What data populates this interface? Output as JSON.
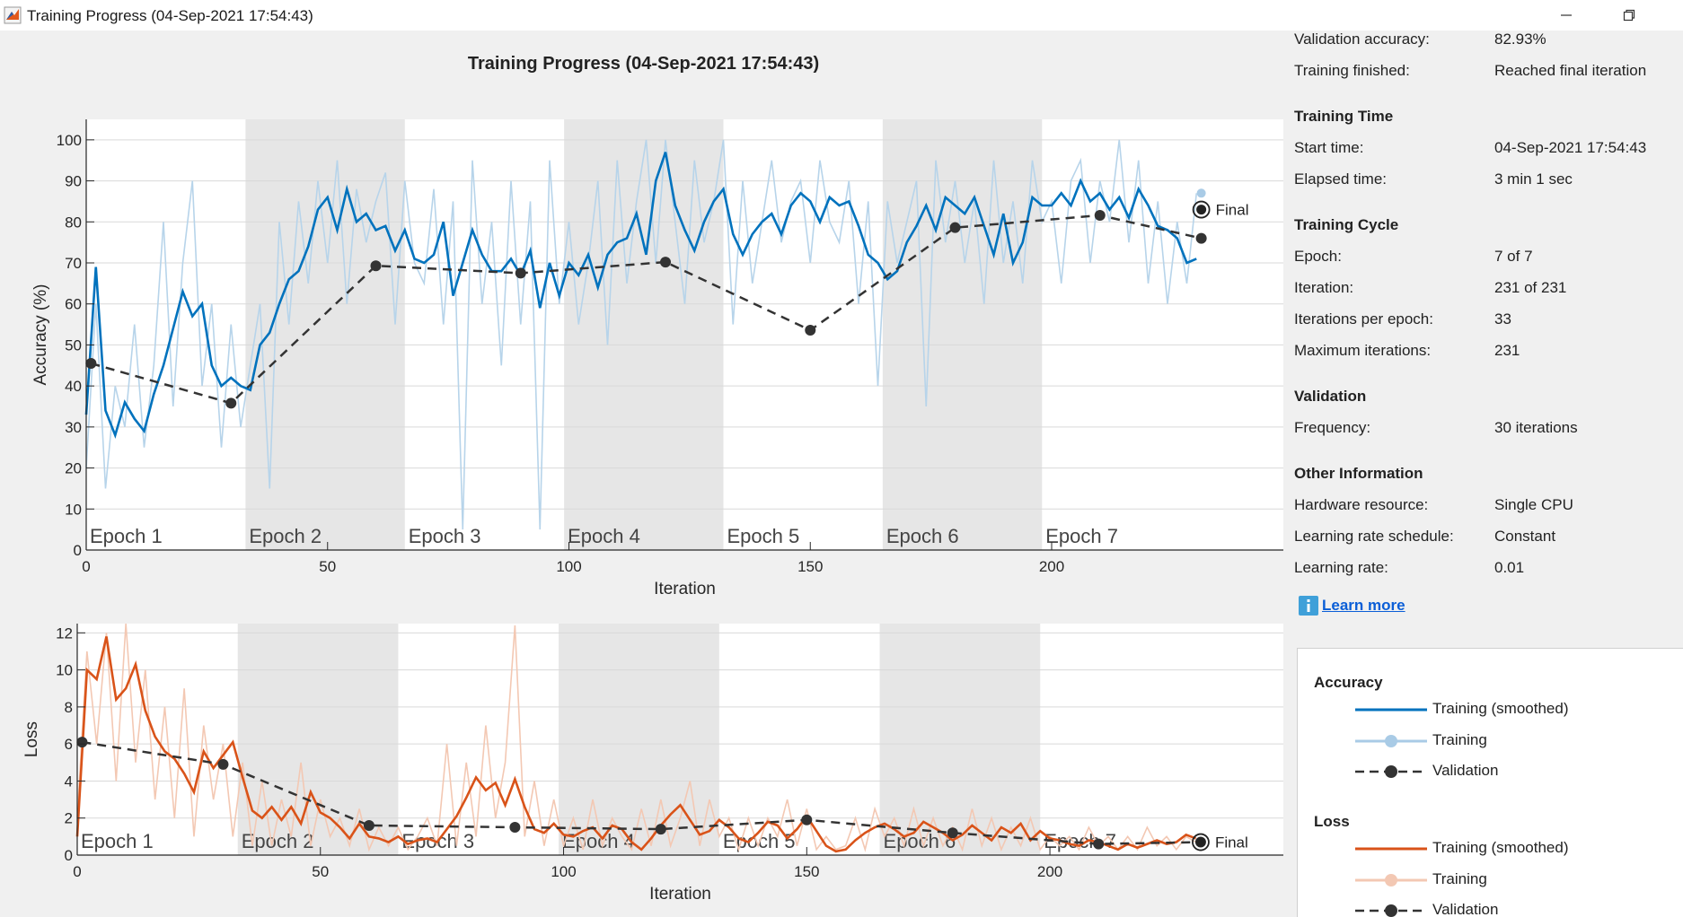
{
  "window": {
    "title": "Training Progress (04-Sep-2021 17:54:43)"
  },
  "plot_title": "Training Progress (04-Sep-2021 17:54:43)",
  "info": {
    "results": [
      {
        "label": "Validation accuracy:",
        "value": "82.93%"
      },
      {
        "label": "Training finished:",
        "value": "Reached final iteration"
      }
    ],
    "training_time": {
      "heading": "Training Time",
      "rows": [
        {
          "label": "Start time:",
          "value": "04-Sep-2021 17:54:43"
        },
        {
          "label": "Elapsed time:",
          "value": "3 min 1 sec"
        }
      ]
    },
    "training_cycle": {
      "heading": "Training Cycle",
      "rows": [
        {
          "label": "Epoch:",
          "value": "7 of 7"
        },
        {
          "label": "Iteration:",
          "value": "231 of 231"
        },
        {
          "label": "Iterations per epoch:",
          "value": "33"
        },
        {
          "label": "Maximum iterations:",
          "value": "231"
        }
      ]
    },
    "validation": {
      "heading": "Validation",
      "rows": [
        {
          "label": "Frequency:",
          "value": "30 iterations"
        }
      ]
    },
    "other": {
      "heading": "Other Information",
      "rows": [
        {
          "label": "Hardware resource:",
          "value": "Single CPU"
        },
        {
          "label": "Learning rate schedule:",
          "value": "Constant"
        },
        {
          "label": "Learning rate:",
          "value": "0.01"
        }
      ]
    },
    "learn_more": "Learn more"
  },
  "legend": {
    "accuracy_heading": "Accuracy",
    "loss_heading": "Loss",
    "accuracy_items": [
      "Training (smoothed)",
      "Training",
      "Validation"
    ],
    "loss_items": [
      "Training (smoothed)",
      "Training",
      "Validation"
    ]
  },
  "colors": {
    "acc_smoothed": "#0072bd",
    "acc_raw": "#b7d4ea",
    "loss_smoothed": "#d95319",
    "loss_raw": "#f3c8b3",
    "validation": "#333333",
    "epoch_shade": "#e6e6e6"
  },
  "chart_data": [
    {
      "type": "line",
      "name": "accuracy",
      "xlabel": "Iteration",
      "ylabel": "Accuracy (%)",
      "xlim": [
        0,
        248
      ],
      "ylim": [
        0,
        105
      ],
      "xticks": [
        0,
        50,
        100,
        150,
        200
      ],
      "yticks": [
        0,
        10,
        20,
        30,
        40,
        50,
        60,
        70,
        80,
        90,
        100
      ],
      "epochs": [
        "Epoch 1",
        "Epoch 2",
        "Epoch 3",
        "Epoch 4",
        "Epoch 5",
        "Epoch 6",
        "Epoch 7"
      ],
      "iterations_per_epoch": 33,
      "final_label": "Final",
      "final_training_value": 87,
      "final_validation_value": 83,
      "smoothed": {
        "x": [
          0,
          2,
          4,
          6,
          8,
          10,
          12,
          14,
          16,
          18,
          20,
          22,
          24,
          26,
          28,
          30,
          32,
          34,
          36,
          38,
          40,
          42,
          44,
          46,
          48,
          50,
          52,
          54,
          56,
          58,
          60,
          62,
          64,
          66,
          68,
          70,
          72,
          74,
          76,
          78,
          80,
          82,
          84,
          86,
          88,
          90,
          92,
          94,
          96,
          98,
          100,
          102,
          104,
          106,
          108,
          110,
          112,
          114,
          116,
          118,
          120,
          122,
          124,
          126,
          128,
          130,
          132,
          134,
          136,
          138,
          140,
          142,
          144,
          146,
          148,
          150,
          152,
          154,
          156,
          158,
          160,
          162,
          164,
          166,
          168,
          170,
          172,
          174,
          176,
          178,
          180,
          182,
          184,
          186,
          188,
          190,
          192,
          194,
          196,
          198,
          200,
          202,
          204,
          206,
          208,
          210,
          212,
          214,
          216,
          218,
          220,
          222,
          224,
          226,
          228,
          230
        ],
        "values": [
          33,
          69,
          34,
          28,
          36,
          32,
          29,
          38,
          45,
          54,
          63,
          57,
          60,
          45,
          40,
          42,
          40,
          39,
          50,
          53,
          60,
          66,
          68,
          74,
          83,
          86,
          78,
          88,
          80,
          82,
          78,
          79,
          73,
          78,
          71,
          70,
          72,
          80,
          62,
          70,
          78,
          72,
          68,
          68,
          71,
          67,
          73,
          59,
          70,
          62,
          70,
          67,
          72,
          64,
          72,
          75,
          76,
          82,
          72,
          90,
          97,
          84,
          78,
          73,
          80,
          85,
          88,
          77,
          72,
          77,
          80,
          82,
          77,
          84,
          87,
          85,
          80,
          86,
          84,
          85,
          79,
          72,
          70,
          66,
          68,
          75,
          79,
          84,
          78,
          86,
          84,
          82,
          86,
          79,
          72,
          82,
          70,
          75,
          86,
          84,
          84,
          87,
          84,
          90,
          85,
          87,
          83,
          86,
          81,
          88,
          84,
          79,
          78,
          76,
          70,
          71
        ]
      },
      "training": {
        "x": [
          0,
          2,
          4,
          6,
          8,
          10,
          12,
          14,
          16,
          18,
          20,
          22,
          24,
          26,
          28,
          30,
          32,
          34,
          36,
          38,
          40,
          42,
          44,
          46,
          48,
          50,
          52,
          54,
          56,
          58,
          60,
          62,
          64,
          66,
          68,
          70,
          72,
          74,
          76,
          78,
          80,
          82,
          84,
          86,
          88,
          90,
          92,
          94,
          96,
          98,
          100,
          102,
          104,
          106,
          108,
          110,
          112,
          114,
          116,
          118,
          120,
          122,
          124,
          126,
          128,
          130,
          132,
          134,
          136,
          138,
          140,
          142,
          144,
          146,
          148,
          150,
          152,
          154,
          156,
          158,
          160,
          162,
          164,
          166,
          168,
          170,
          172,
          174,
          176,
          178,
          180,
          182,
          184,
          186,
          188,
          190,
          192,
          194,
          196,
          198,
          200,
          202,
          204,
          206,
          208,
          210,
          212,
          214,
          216,
          218,
          220,
          222,
          224,
          226,
          228,
          230
        ],
        "values": [
          20,
          60,
          15,
          40,
          30,
          55,
          25,
          45,
          80,
          35,
          70,
          90,
          40,
          60,
          25,
          55,
          30,
          45,
          60,
          15,
          80,
          55,
          85,
          65,
          90,
          70,
          95,
          60,
          88,
          75,
          85,
          92,
          55,
          90,
          70,
          65,
          88,
          55,
          85,
          5,
          95,
          60,
          80,
          45,
          90,
          55,
          85,
          5,
          95,
          60,
          80,
          55,
          70,
          90,
          50,
          95,
          65,
          85,
          100,
          70,
          100,
          80,
          60,
          95,
          75,
          85,
          100,
          55,
          90,
          65,
          80,
          95,
          75,
          85,
          90,
          70,
          95,
          80,
          75,
          90,
          60,
          85,
          40,
          85,
          70,
          80,
          90,
          35,
          95,
          75,
          90,
          70,
          85,
          60,
          95,
          70,
          85,
          65,
          95,
          80,
          85,
          65,
          90,
          95,
          70,
          90,
          80,
          100,
          75,
          95,
          65,
          85,
          60,
          80,
          65,
          87
        ]
      },
      "validation": {
        "x": [
          1,
          30,
          60,
          90,
          120,
          150,
          180,
          210,
          231
        ],
        "values": [
          45.5,
          35.8,
          69.3,
          67.5,
          70.2,
          53.6,
          78.6,
          81.6,
          76
        ]
      }
    },
    {
      "type": "line",
      "name": "loss",
      "xlabel": "Iteration",
      "ylabel": "Loss",
      "xlim": [
        0,
        248
      ],
      "ylim": [
        0,
        12.5
      ],
      "xticks": [
        0,
        50,
        100,
        150,
        200
      ],
      "yticks": [
        0,
        2,
        4,
        6,
        8,
        10,
        12
      ],
      "epochs": [
        "Epoch 1",
        "Epoch 2",
        "Epoch 3",
        "Epoch 4",
        "Epoch 5",
        "Epoch 6",
        "Epoch 7"
      ],
      "iterations_per_epoch": 33,
      "final_label": "Final",
      "final_validation_value": 0.7,
      "smoothed": {
        "x": [
          0,
          2,
          4,
          6,
          8,
          10,
          12,
          14,
          16,
          18,
          20,
          22,
          24,
          26,
          28,
          30,
          32,
          34,
          36,
          38,
          40,
          42,
          44,
          46,
          48,
          50,
          52,
          54,
          56,
          58,
          60,
          62,
          64,
          66,
          68,
          70,
          72,
          74,
          76,
          78,
          80,
          82,
          84,
          86,
          88,
          90,
          92,
          94,
          96,
          98,
          100,
          102,
          104,
          106,
          108,
          110,
          112,
          114,
          116,
          118,
          120,
          122,
          124,
          126,
          128,
          130,
          132,
          134,
          136,
          138,
          140,
          142,
          144,
          146,
          148,
          150,
          152,
          154,
          156,
          158,
          160,
          162,
          164,
          166,
          168,
          170,
          172,
          174,
          176,
          178,
          180,
          182,
          184,
          186,
          188,
          190,
          192,
          194,
          196,
          198,
          200,
          202,
          204,
          206,
          208,
          210,
          212,
          214,
          216,
          218,
          220,
          222,
          224,
          226,
          228,
          230
        ],
        "values": [
          1,
          10,
          9.5,
          11.8,
          8.4,
          9,
          10.3,
          7.8,
          6.4,
          5.6,
          5.2,
          4.4,
          3.4,
          5.6,
          4.7,
          5.4,
          6.1,
          4.2,
          2.4,
          2.0,
          2.6,
          1.9,
          2.6,
          1.7,
          3.4,
          2.3,
          2.0,
          1.5,
          0.9,
          1.7,
          1.0,
          0.9,
          0.7,
          1.0,
          0.6,
          0.8,
          0.9,
          0.7,
          1.4,
          2.1,
          3.1,
          4.2,
          3.5,
          3.9,
          2.7,
          4.1,
          2.6,
          1.4,
          1.2,
          1.7,
          1.1,
          1.0,
          1.3,
          1.5,
          0.9,
          1.6,
          1.4,
          0.7,
          0.3,
          0.9,
          1.6,
          2.2,
          2.7,
          1.9,
          1.1,
          1.3,
          1.9,
          1.5,
          0.9,
          0.7,
          1.2,
          1.8,
          1.6,
          0.9,
          1.4,
          2.1,
          1.3,
          0.5,
          0.2,
          0.3,
          0.8,
          1.2,
          1.5,
          1.7,
          1.4,
          1.0,
          1.2,
          1.8,
          1.5,
          1.2,
          0.8,
          1.1,
          1.6,
          1.2,
          0.8,
          1.5,
          1.2,
          1.7,
          0.8,
          1.3,
          0.9,
          0.8,
          0.6,
          0.5,
          0.8,
          0.7,
          0.5,
          0.3,
          0.6,
          0.4,
          0.6,
          0.8,
          0.6,
          0.7,
          1.1,
          0.9
        ]
      },
      "training": {
        "x": [
          0,
          2,
          4,
          6,
          8,
          10,
          12,
          14,
          16,
          18,
          20,
          22,
          24,
          26,
          28,
          30,
          32,
          34,
          36,
          38,
          40,
          42,
          44,
          46,
          48,
          50,
          52,
          54,
          56,
          58,
          60,
          62,
          64,
          66,
          68,
          70,
          72,
          74,
          76,
          78,
          80,
          82,
          84,
          86,
          88,
          90,
          92,
          94,
          96,
          98,
          100,
          102,
          104,
          106,
          108,
          110,
          112,
          114,
          116,
          118,
          120,
          122,
          124,
          126,
          128,
          130,
          132,
          134,
          136,
          138,
          140,
          142,
          144,
          146,
          148,
          150,
          152,
          154,
          156,
          158,
          160,
          162,
          164,
          166,
          168,
          170,
          172,
          174,
          176,
          178,
          180,
          182,
          184,
          186,
          188,
          190,
          192,
          194,
          196,
          198,
          200,
          202,
          204,
          206,
          208,
          210,
          212,
          214,
          216,
          218,
          220,
          222,
          224,
          226,
          228,
          230
        ],
        "values": [
          2,
          11,
          6,
          12,
          4,
          12.5,
          5,
          10,
          3,
          8,
          2,
          9,
          1,
          7,
          3,
          6,
          1,
          5,
          0.5,
          4,
          0.5,
          3,
          1,
          5,
          0.5,
          3,
          1,
          2,
          0.5,
          2.5,
          0.3,
          1.5,
          0.5,
          1.5,
          0.3,
          1,
          2,
          0.5,
          6,
          0.5,
          5,
          1,
          7,
          2,
          5,
          12.4,
          1,
          4,
          0.5,
          3,
          0.5,
          2,
          0.3,
          3,
          0.5,
          2,
          1,
          0.3,
          2.5,
          0.5,
          3,
          0.5,
          2,
          4,
          0.5,
          3,
          1,
          2,
          0.3,
          2,
          0.5,
          2,
          1,
          3,
          0.5,
          2.5,
          0.3,
          1,
          0.3,
          0.5,
          2,
          0.3,
          2.5,
          1,
          2,
          0.5,
          2.5,
          0.5,
          2,
          0.5,
          1.5,
          0.3,
          2.5,
          0.5,
          2,
          0.3,
          1.5,
          0.5,
          2,
          0.3,
          1,
          0.5,
          1,
          0.3,
          1.5,
          0.5,
          1,
          0.3,
          1,
          0.3,
          1.5,
          0.5,
          1,
          0.3,
          1,
          0.7
        ]
      },
      "validation": {
        "x": [
          1,
          30,
          60,
          90,
          120,
          150,
          180,
          210,
          231
        ],
        "values": [
          6.1,
          4.9,
          1.6,
          1.5,
          1.4,
          1.9,
          1.2,
          0.6,
          0.7
        ]
      }
    }
  ]
}
